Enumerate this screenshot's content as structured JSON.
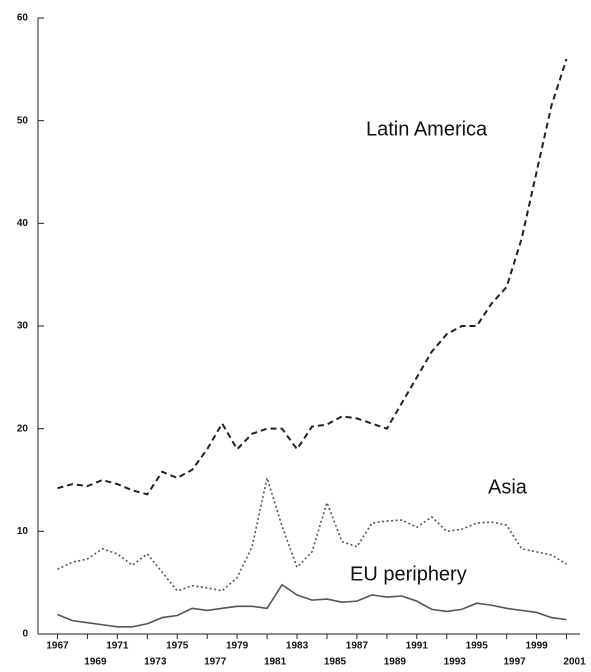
{
  "chart_data": {
    "type": "line",
    "x": [
      1967,
      1968,
      1969,
      1970,
      1971,
      1972,
      1973,
      1974,
      1975,
      1976,
      1977,
      1978,
      1979,
      1980,
      1981,
      1982,
      1983,
      1984,
      1985,
      1986,
      1987,
      1988,
      1989,
      1990,
      1991,
      1992,
      1993,
      1994,
      1995,
      1996,
      1997,
      1998,
      1999,
      2000,
      2001
    ],
    "series": [
      {
        "name": "Latin America",
        "color": "#222222",
        "dash": "dashed",
        "values": [
          14.2,
          14.6,
          14.4,
          15,
          14.6,
          14,
          13.6,
          15.8,
          15.2,
          16,
          18,
          20.5,
          18,
          19.5,
          20,
          20,
          18,
          20.2,
          20.4,
          21.2,
          21,
          20.5,
          20,
          22.5,
          25,
          27.5,
          29.2,
          30,
          30,
          32.2,
          33.8,
          38.5,
          45,
          51.5,
          56
        ]
      },
      {
        "name": "Asia",
        "color": "#555555",
        "dash": "dotted",
        "values": [
          6.3,
          7,
          7.3,
          8.3,
          7.8,
          6.7,
          7.8,
          6,
          4.2,
          4.7,
          4.5,
          4.2,
          5.5,
          8.5,
          15.2,
          10.5,
          6.5,
          8,
          12.8,
          9,
          8.5,
          10.8,
          11,
          11.1,
          10.4,
          11.4,
          10,
          10.2,
          10.8,
          10.9,
          10.6,
          8.3,
          8,
          7.7,
          6.8
        ]
      },
      {
        "name": "EU periphery",
        "color": "#555555",
        "dash": "solid",
        "values": [
          1.9,
          1.3,
          1.1,
          0.9,
          0.7,
          0.7,
          1,
          1.6,
          1.8,
          2.5,
          2.3,
          2.5,
          2.7,
          2.7,
          2.5,
          4.8,
          3.8,
          3.3,
          3.4,
          3.1,
          3.2,
          3.8,
          3.6,
          3.7,
          3.2,
          2.4,
          2.2,
          2.4,
          3,
          2.8,
          2.5,
          2.3,
          2.1,
          1.6,
          1.4
        ]
      }
    ],
    "xlim": [
      1965.7,
      2001.9
    ],
    "xticks": [
      1967,
      1969,
      1971,
      1973,
      1975,
      1977,
      1979,
      1981,
      1983,
      1985,
      1987,
      1989,
      1991,
      1993,
      1995,
      1997,
      1999,
      2001
    ],
    "ylim": [
      0,
      60
    ],
    "yticks": [
      0,
      10,
      20,
      30,
      40,
      50,
      60
    ]
  }
}
